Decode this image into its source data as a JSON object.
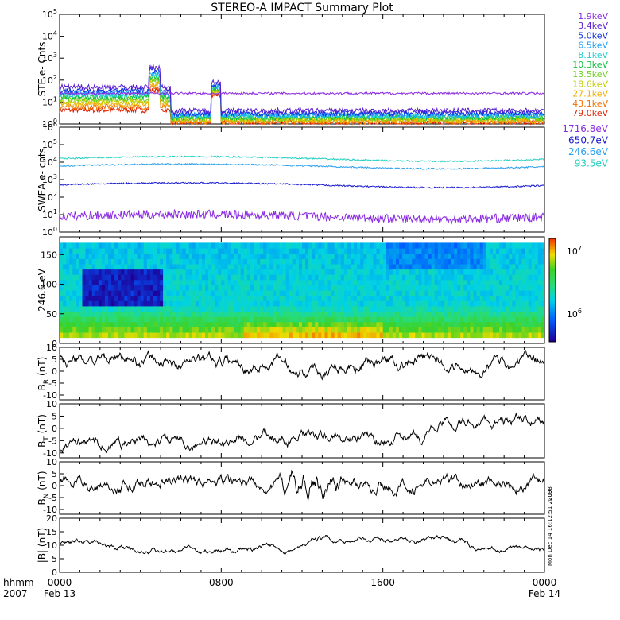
{
  "title": "STEREO-A IMPACT Summary Plot",
  "time_axis": {
    "corner_top": "hhmm",
    "corner_bottom": "2007",
    "ticks": [
      {
        "label": "0000",
        "sub": "Feb 13",
        "hour": 0
      },
      {
        "label": "0800",
        "sub": "",
        "hour": 8
      },
      {
        "label": "1600",
        "sub": "",
        "hour": 16
      },
      {
        "label": "0000",
        "sub": "Feb 14",
        "hour": 24
      }
    ]
  },
  "side_stamp_1": "2008",
  "side_stamp_2": "Mon Dec 14 16:12:51 2009",
  "chart_data": [
    {
      "type": "line",
      "id": "ste",
      "ylabel": "STE e- Cnts",
      "yscale": "log",
      "ylim": [
        1,
        100000
      ],
      "ytick_labels": [
        "10^0",
        "10^1",
        "10^2",
        "10^3",
        "10^4",
        "10^5"
      ],
      "series": [
        {
          "name": "1.9keV",
          "color": "#8a2be2",
          "level": 25
        },
        {
          "name": "3.4keV",
          "color": "#5a1fd0",
          "level": 4
        },
        {
          "name": "5.0keV",
          "color": "#1030e0",
          "level": 3
        },
        {
          "name": "6.5keV",
          "color": "#20a0ff",
          "level": 2.6
        },
        {
          "name": "8.1keV",
          "color": "#20d0d0",
          "level": 2.3
        },
        {
          "name": "10.3keV",
          "color": "#10c040",
          "level": 2
        },
        {
          "name": "13.5keV",
          "color": "#70d020",
          "level": 1.8
        },
        {
          "name": "18.6keV",
          "color": "#c0d000",
          "level": 1.6
        },
        {
          "name": "27.1keV",
          "color": "#f0b000",
          "level": 1.4
        },
        {
          "name": "43.1keV",
          "color": "#f07000",
          "level": 1.25
        },
        {
          "name": "79.0keV",
          "color": "#e02000",
          "level": 1.1
        }
      ]
    },
    {
      "type": "line",
      "id": "swea",
      "ylabel": "SWEA e- cnts",
      "yscale": "log",
      "ylim": [
        1,
        1000000
      ],
      "ytick_labels": [
        "10^0",
        "10^1",
        "10^2",
        "10^3",
        "10^4",
        "10^5",
        "10^6"
      ],
      "series": [
        {
          "name": "1716.8eV",
          "color": "#8a2be2",
          "level": 8
        },
        {
          "name": "650.7eV",
          "color": "#1a1ad0",
          "level": 500
        },
        {
          "name": "246.6eV",
          "color": "#2aa0ee",
          "level": 6000
        },
        {
          "name": "93.5eV",
          "color": "#20d0c0",
          "level": 16000
        }
      ]
    },
    {
      "type": "heatmap",
      "id": "pad",
      "ylabel": "246.6 eV",
      "ylim": [
        0,
        180
      ],
      "yticks": [
        0,
        50,
        100,
        150
      ],
      "colorbar_labels": [
        "10^7",
        "10^6"
      ]
    },
    {
      "type": "line",
      "id": "br",
      "ylabel": "B_R (nT)",
      "ylim": [
        -12,
        10
      ],
      "yticks": [
        -10,
        -5,
        0,
        5,
        10
      ],
      "color": "#000000"
    },
    {
      "type": "line",
      "id": "bt",
      "ylabel": "B_T (nT)",
      "ylim": [
        -12,
        10
      ],
      "yticks": [
        -10,
        -5,
        0,
        5,
        10
      ],
      "color": "#000000"
    },
    {
      "type": "line",
      "id": "bn",
      "ylabel": "B_N (nT)",
      "ylim": [
        -12,
        10
      ],
      "yticks": [
        -10,
        -5,
        0,
        5,
        10
      ],
      "color": "#000000"
    },
    {
      "type": "line",
      "id": "bmag",
      "ylabel": "|B| (nT)",
      "ylim": [
        0,
        20
      ],
      "yticks": [
        0,
        5,
        10,
        15,
        20
      ],
      "color": "#000000"
    }
  ]
}
